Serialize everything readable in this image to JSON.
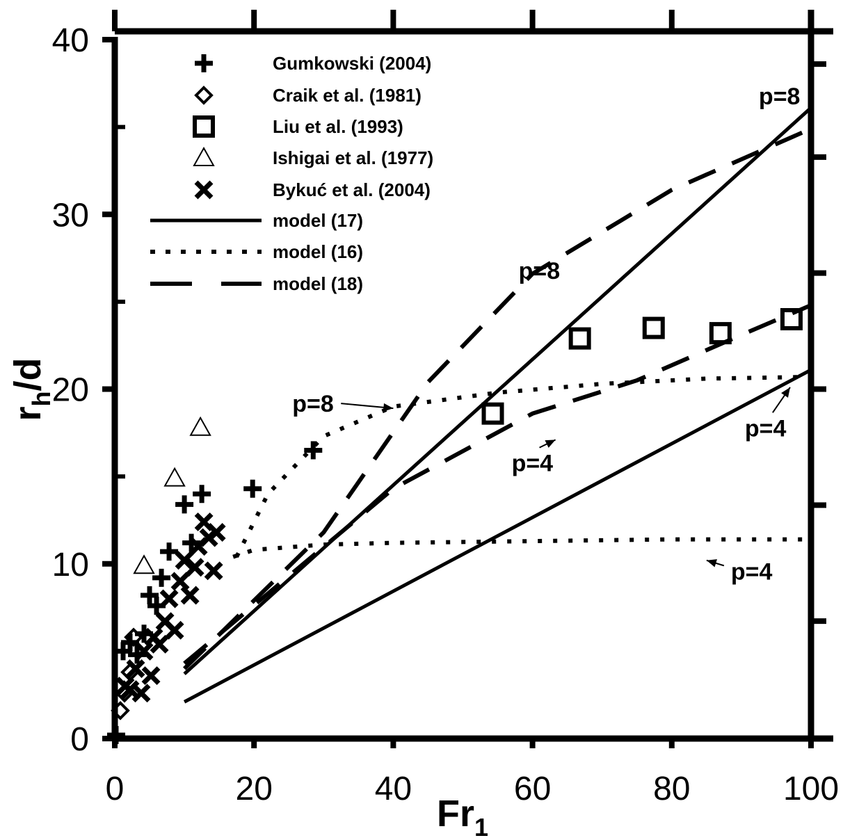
{
  "chart_data": {
    "type": "scatter",
    "title": "",
    "xlabel": "Fr",
    "xlabel_sub": "1",
    "ylabel": "r",
    "ylabel_sub": "h",
    "ylabel_suffix": "/d",
    "xlim": [
      0,
      100
    ],
    "ylim": [
      0,
      40
    ],
    "x_ticks": [
      0,
      20,
      40,
      60,
      80,
      100
    ],
    "x_tick_labels": [
      "0",
      "20",
      "40",
      "60",
      "80",
      "100"
    ],
    "y_ticks": [
      0,
      10,
      20,
      30,
      40
    ],
    "y_tick_labels": [
      "0",
      "10",
      "20",
      "30",
      "40"
    ],
    "grid": false,
    "legend_position": "top-left",
    "series": [
      {
        "name": "Gumkowski (2004)",
        "marker": "plus",
        "points": [
          [
            0.2,
            0.2
          ],
          [
            1.2,
            5
          ],
          [
            2.2,
            5.5
          ],
          [
            3.2,
            4.8
          ],
          [
            4.2,
            6
          ],
          [
            5,
            8.2
          ],
          [
            6,
            7.6
          ],
          [
            6.7,
            9.2
          ],
          [
            7.8,
            10.7
          ],
          [
            10,
            13.4
          ],
          [
            11,
            11.2
          ],
          [
            12.5,
            14
          ],
          [
            19.8,
            14.3
          ],
          [
            28.5,
            16.5
          ]
        ]
      },
      {
        "name": "Craik et al. (1981)",
        "marker": "diamond",
        "points": [
          [
            0.8,
            1.6
          ],
          [
            1.4,
            2.6
          ],
          [
            2.2,
            3.8
          ],
          [
            2.7,
            5.8
          ]
        ]
      },
      {
        "name": "Liu et al. (1993)",
        "marker": "square",
        "points": [
          [
            54.3,
            18.6
          ],
          [
            66.8,
            22.9
          ],
          [
            77.4,
            23.5
          ],
          [
            87,
            23.2
          ],
          [
            97.2,
            24
          ]
        ]
      },
      {
        "name": "Ishigai et al. (1977)",
        "marker": "triangle",
        "points": [
          [
            4.2,
            9.9
          ],
          [
            8.6,
            14.9
          ],
          [
            12.3,
            17.8
          ]
        ]
      },
      {
        "name": "Bykuć et al. (2004)",
        "marker": "cross",
        "points": [
          [
            1.5,
            3
          ],
          [
            2.2,
            2.8
          ],
          [
            3,
            4
          ],
          [
            3.8,
            2.6
          ],
          [
            4.2,
            5
          ],
          [
            5.2,
            3.6
          ],
          [
            5.6,
            5.8
          ],
          [
            6.4,
            5.4
          ],
          [
            7.2,
            6.7
          ],
          [
            7.8,
            8
          ],
          [
            8.6,
            6.2
          ],
          [
            9.4,
            9
          ],
          [
            10,
            10.2
          ],
          [
            10.8,
            8.2
          ],
          [
            11.5,
            9.8
          ],
          [
            12,
            11
          ],
          [
            12.8,
            12.4
          ],
          [
            13.5,
            11.5
          ],
          [
            14.2,
            9.6
          ],
          [
            14.6,
            11.8
          ]
        ]
      },
      {
        "name": "model (17)",
        "style": "solid",
        "lines": [
          {
            "label": "p=8",
            "points": [
              [
                10,
                3.7
              ],
              [
                100,
                36.1
              ]
            ]
          },
          {
            "label": "p=4",
            "points": [
              [
                10,
                2.1
              ],
              [
                100,
                21.1
              ]
            ]
          }
        ]
      },
      {
        "name": "model (16)",
        "style": "dotted",
        "lines": [
          {
            "label": "p=8",
            "points": [
              [
                17.5,
                10.4
              ],
              [
                22,
                14
              ],
              [
                30,
                17.3
              ],
              [
                40,
                19
              ],
              [
                55,
                19.8
              ],
              [
                70,
                20.3
              ],
              [
                85,
                20.6
              ],
              [
                100,
                20.7
              ]
            ]
          },
          {
            "label": "p=4",
            "points": [
              [
                17,
                10.4
              ],
              [
                20,
                10.8
              ],
              [
                30,
                11.1
              ],
              [
                40,
                11.2
              ],
              [
                60,
                11.3
              ],
              [
                80,
                11.4
              ],
              [
                100,
                11.4
              ]
            ]
          }
        ]
      },
      {
        "name": "model (18)",
        "style": "dashed",
        "lines": [
          {
            "label": "p=8",
            "points": [
              [
                10,
                4
              ],
              [
                30,
                11.8
              ],
              [
                45,
                20.4
              ],
              [
                60,
                26.6
              ],
              [
                80,
                31.4
              ],
              [
                100,
                34.9
              ]
            ]
          },
          {
            "label": "p=4",
            "points": [
              [
                10,
                4.3
              ],
              [
                40,
                14.3
              ],
              [
                60,
                18.6
              ],
              [
                75,
                20.5
              ],
              [
                90,
                23.1
              ],
              [
                100,
                24.8
              ]
            ]
          }
        ]
      }
    ],
    "annotations": [
      {
        "text": "p=8",
        "x": 92.5,
        "y": 36.3,
        "anchor": "start"
      },
      {
        "text": "p=8",
        "x": 58,
        "y": 26.3,
        "anchor": "start"
      },
      {
        "text": "p=8",
        "x": 25.5,
        "y": 18.7,
        "anchor": "start",
        "arrow_to": [
          40,
          18.9
        ]
      },
      {
        "text": "p=4",
        "x": 57,
        "y": 15.3,
        "anchor": "start",
        "arrow_to": [
          63.3,
          17.1
        ]
      },
      {
        "text": "p=4",
        "x": 90.5,
        "y": 17.3,
        "anchor": "start",
        "arrow_to": [
          97,
          20.1
        ]
      },
      {
        "text": "p=4",
        "x": 88.5,
        "y": 9.1,
        "anchor": "start",
        "arrow_to": [
          85,
          10.2
        ]
      }
    ]
  }
}
